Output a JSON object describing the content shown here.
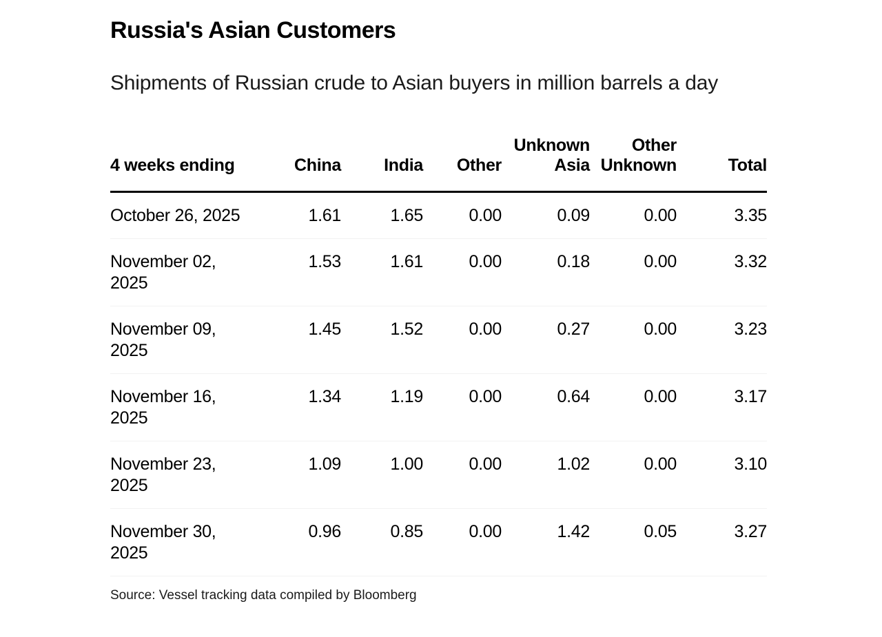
{
  "page": {
    "title": "Russia's Asian Customers",
    "subtitle": "Shipments of Russian crude to Asian buyers in million barrels a day",
    "source": "Source: Vessel tracking data compiled by Bloomberg"
  },
  "colors": {
    "background": "#ffffff",
    "title_text": "#000000",
    "subtitle_text": "#1a1a1a",
    "header_rule": "#000000",
    "row_divider": "#f2f2f2"
  },
  "table": {
    "columns": [
      "4 weeks ending",
      "China",
      "India",
      "Other",
      "Unknown Asia",
      "Other Unknown",
      "Total"
    ],
    "rows": [
      {
        "date_lines": [
          "October 26, 2025",
          ""
        ],
        "values": [
          "1.61",
          "1.65",
          "0.00",
          "0.09",
          "0.00",
          "3.35"
        ]
      },
      {
        "date_lines": [
          "November 02,",
          "2025"
        ],
        "values": [
          "1.53",
          "1.61",
          "0.00",
          "0.18",
          "0.00",
          "3.32"
        ]
      },
      {
        "date_lines": [
          "November 09,",
          "2025"
        ],
        "values": [
          "1.45",
          "1.52",
          "0.00",
          "0.27",
          "0.00",
          "3.23"
        ]
      },
      {
        "date_lines": [
          "November 16,",
          "2025"
        ],
        "values": [
          "1.34",
          "1.19",
          "0.00",
          "0.64",
          "0.00",
          "3.17"
        ]
      },
      {
        "date_lines": [
          "November 23,",
          "2025"
        ],
        "values": [
          "1.09",
          "1.00",
          "0.00",
          "1.02",
          "0.00",
          "3.10"
        ]
      },
      {
        "date_lines": [
          "November 30,",
          "2025"
        ],
        "values": [
          "0.96",
          "0.85",
          "0.00",
          "1.42",
          "0.05",
          "3.27"
        ]
      }
    ]
  },
  "chart_data": {
    "type": "table",
    "title": "Russia's Asian Customers",
    "subtitle": "Shipments of Russian crude to Asian buyers in million barrels a day",
    "unit": "million barrels a day",
    "categories": [
      "October 26, 2025",
      "November 02, 2025",
      "November 09, 2025",
      "November 16, 2025",
      "November 23, 2025",
      "November 30, 2025"
    ],
    "series": [
      {
        "name": "China",
        "values": [
          1.61,
          1.53,
          1.45,
          1.34,
          1.09,
          0.96
        ]
      },
      {
        "name": "India",
        "values": [
          1.65,
          1.61,
          1.52,
          1.19,
          1.0,
          0.85
        ]
      },
      {
        "name": "Other",
        "values": [
          0.0,
          0.0,
          0.0,
          0.0,
          0.0,
          0.0
        ]
      },
      {
        "name": "Unknown Asia",
        "values": [
          0.09,
          0.18,
          0.27,
          0.64,
          1.02,
          1.42
        ]
      },
      {
        "name": "Other Unknown",
        "values": [
          0.0,
          0.0,
          0.0,
          0.0,
          0.0,
          0.05
        ]
      },
      {
        "name": "Total",
        "values": [
          3.35,
          3.32,
          3.23,
          3.17,
          3.1,
          3.27
        ]
      }
    ],
    "source": "Source: Vessel tracking data compiled by Bloomberg"
  }
}
